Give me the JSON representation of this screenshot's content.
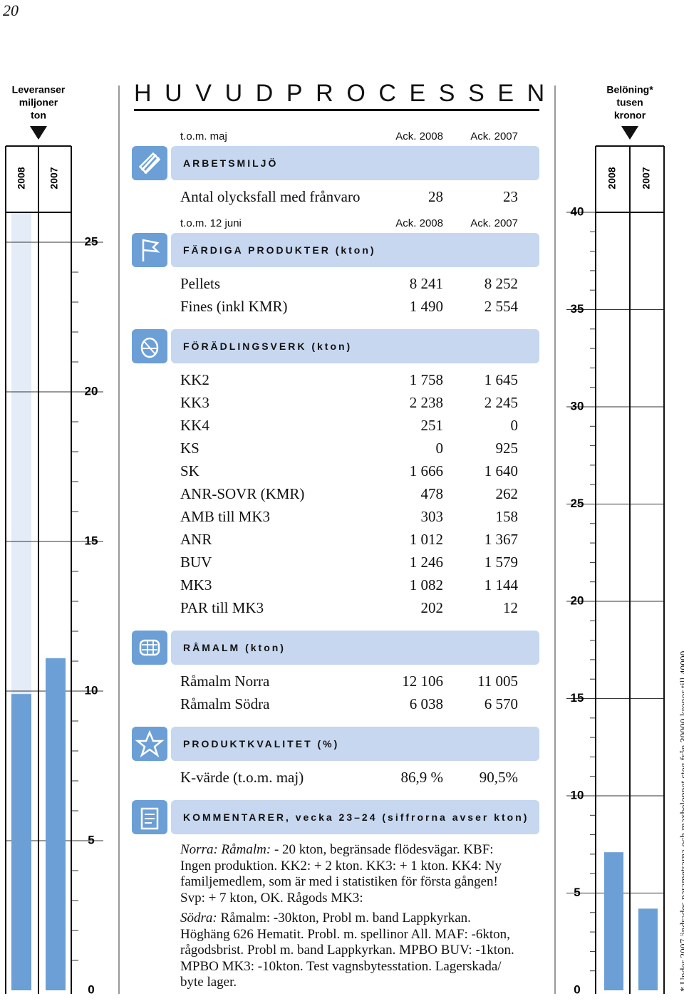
{
  "page_number": "20",
  "title": "HUVUDPROCESSEN",
  "sections": [
    {
      "header": [
        "t.o.m. maj",
        "Ack. 2008",
        "Ack. 2007"
      ],
      "title": "ARBETSMILJÖ",
      "rows": [
        [
          "Antal olycksfall med frånvaro",
          "28",
          "23"
        ]
      ]
    },
    {
      "header": [
        "t.o.m. 12 juni",
        "Ack. 2008",
        "Ack. 2007"
      ],
      "title": "FÄRDIGA PRODUKTER (kton)",
      "rows": [
        [
          "Pellets",
          "8 241",
          "8 252"
        ],
        [
          "Fines (inkl KMR)",
          "1 490",
          "2 554"
        ]
      ]
    },
    {
      "title": "FÖRÄDLINGSVERK (kton)",
      "rows": [
        [
          "KK2",
          "1 758",
          "1 645"
        ],
        [
          "KK3",
          "2 238",
          "2 245"
        ],
        [
          "KK4",
          "251",
          "0"
        ],
        [
          "KS",
          "0",
          "925"
        ],
        [
          "SK",
          "1 666",
          "1 640"
        ],
        [
          "ANR-SOVR (KMR)",
          "478",
          "262"
        ],
        [
          "AMB till MK3",
          "303",
          "158"
        ],
        [
          "ANR",
          "1 012",
          "1 367"
        ],
        [
          "BUV",
          "1 246",
          "1 579"
        ],
        [
          "MK3",
          "1 082",
          "1 144"
        ],
        [
          "PAR till MK3",
          "202",
          "12"
        ]
      ]
    },
    {
      "title": "RÅMALM (kton)",
      "rows": [
        [
          "Råmalm Norra",
          "12 106",
          "11 005"
        ],
        [
          "Råmalm Södra",
          "6 038",
          "6 570"
        ]
      ]
    },
    {
      "title": "PRODUKTKVALITET (%)",
      "rows": [
        [
          "K-värde (t.o.m. maj)",
          "86,9 %",
          "90,5%"
        ]
      ]
    },
    {
      "title": "KOMMENTARER, vecka 23–24 (siffrorna avser kton)",
      "paragraphs": [
        {
          "lead": "Norra: Råmalm:",
          "text": "- 20 kton, begränsade flödesvägar. KBF: Ingen produktion. KK2: + 2 kton. KK3: + 1 kton. KK4: Ny familjemedlem, som är med i statistiken för första gången! Svp: + 7 kton, OK. Rågods MK3:"
        },
        {
          "lead": "Södra:",
          "text": "Råmalm: -30kton, Probl m. band Lappkyrkan. Höghäng 626 Hematit. Probl. m. spellinor All. MAF: -6kton, rågodsbrist. Probl m. band Lappkyrkan. MPBO BUV: -1kton. MPBO MK3: -10kton. Test vagnsbytesstation. Lagerskada/ byte lager."
        }
      ]
    }
  ],
  "footnote": "* Under 2007 ändrades parametrarna och maxbeloppet steg från 30000 kronor till 40000.",
  "chart_data": [
    {
      "type": "bar",
      "title": [
        "Leveranser",
        "miljoner",
        "ton"
      ],
      "categories": [
        "2008",
        "2007"
      ],
      "values": [
        9.9,
        11.1
      ],
      "color": "#6b9fd6",
      "ylim": [
        0,
        25
      ],
      "yticks": [
        0,
        5,
        10,
        15,
        20,
        25
      ],
      "minor_yticks": [
        1,
        2,
        3,
        4,
        6,
        7,
        8,
        9,
        11,
        12,
        13,
        14,
        16,
        17,
        18,
        19,
        21,
        22,
        23,
        24
      ]
    },
    {
      "type": "bar",
      "title": [
        "Belöning*",
        "tusen",
        "kronor"
      ],
      "categories": [
        "2008",
        "2007"
      ],
      "values": [
        7.1,
        4.2
      ],
      "color": "#6b9fd6",
      "ylim": [
        0,
        40
      ],
      "yticks": [
        0,
        5,
        10,
        15,
        20,
        25,
        30,
        35,
        40
      ],
      "minor_yticks": [
        1,
        2,
        3,
        4,
        6,
        7,
        8,
        9,
        11,
        12,
        13,
        14,
        16,
        17,
        18,
        19,
        21,
        22,
        23,
        24,
        26,
        27,
        28,
        29,
        31,
        32,
        33,
        34,
        36,
        37,
        38,
        39
      ]
    }
  ]
}
